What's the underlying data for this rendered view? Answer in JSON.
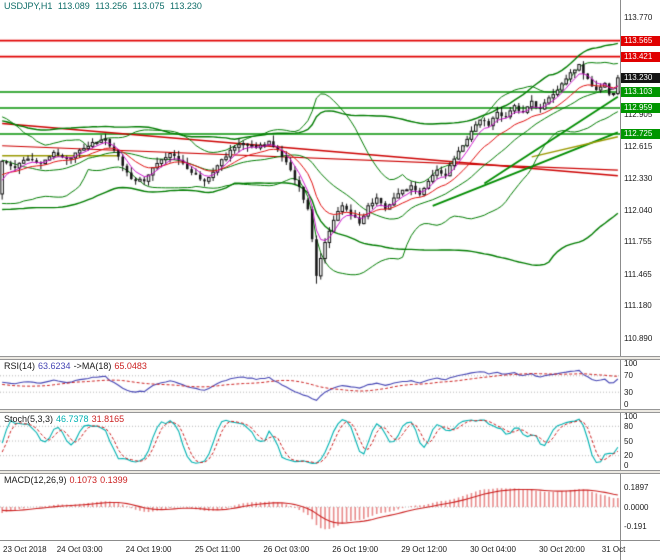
{
  "header": {
    "symbol": "USDJPY,H1",
    "open": "113.089",
    "high": "113.256",
    "low": "113.075",
    "close": "113.230"
  },
  "panels": {
    "rsi": {
      "title": "RSI(14)",
      "value": "63.6234",
      "ma_title": "->MA(18)",
      "ma_value": "65.0483",
      "levels": [
        "100",
        "70",
        "30",
        "0"
      ]
    },
    "stoch": {
      "title": "Stoch(5,3,3)",
      "value": "46.7378",
      "value2": "31.8165",
      "levels": [
        "100",
        "80",
        "50",
        "20",
        "0"
      ]
    },
    "macd": {
      "title": "MACD(12,26,9)",
      "value": "0.1073",
      "value2": "0.1399",
      "levels": [
        "0.1897",
        "0.0000",
        "-0.191"
      ]
    }
  },
  "chart_data": {
    "type": "candlestick",
    "symbol": "USDJPY",
    "timeframe": "H1",
    "bars": 144,
    "ylim": [
      110.73,
      113.93
    ],
    "y_ticks": [
      "113.770",
      "112.905",
      "112.615",
      "112.330",
      "112.040",
      "111.755",
      "111.465",
      "111.180",
      "110.890"
    ],
    "x_labels": [
      "23 Oct 2018",
      "24 Oct 03:00",
      "24 Oct 19:00",
      "25 Oct 11:00",
      "26 Oct 03:00",
      "26 Oct 19:00",
      "29 Oct 12:00",
      "30 Oct 04:00",
      "30 Oct 20:00",
      "31 Oct"
    ],
    "x_label_bars": [
      2,
      18,
      34,
      50,
      66,
      82,
      98,
      114,
      130,
      142
    ],
    "current_bar": {
      "open": 113.089,
      "high": 113.256,
      "low": 113.075,
      "close": 113.23
    },
    "close_anchors": [
      [
        0,
        112.48
      ],
      [
        3,
        112.42
      ],
      [
        6,
        112.5
      ],
      [
        9,
        112.46
      ],
      [
        12,
        112.56
      ],
      [
        15,
        112.5
      ],
      [
        18,
        112.58
      ],
      [
        21,
        112.65
      ],
      [
        24,
        112.68
      ],
      [
        26,
        112.58
      ],
      [
        28,
        112.44
      ],
      [
        30,
        112.32
      ],
      [
        33,
        112.3
      ],
      [
        36,
        112.46
      ],
      [
        39,
        112.55
      ],
      [
        42,
        112.46
      ],
      [
        45,
        112.36
      ],
      [
        47,
        112.3
      ],
      [
        50,
        112.44
      ],
      [
        53,
        112.58
      ],
      [
        56,
        112.64
      ],
      [
        59,
        112.6
      ],
      [
        62,
        112.66
      ],
      [
        64,
        112.58
      ],
      [
        65,
        112.52
      ],
      [
        67,
        112.4
      ],
      [
        69,
        112.25
      ],
      [
        71,
        112.05
      ],
      [
        72,
        111.78
      ],
      [
        73,
        111.45
      ],
      [
        75,
        111.75
      ],
      [
        77,
        111.95
      ],
      [
        79,
        112.08
      ],
      [
        81,
        112.0
      ],
      [
        83,
        111.92
      ],
      [
        85,
        112.08
      ],
      [
        87,
        112.15
      ],
      [
        89,
        112.05
      ],
      [
        91,
        112.15
      ],
      [
        93,
        112.22
      ],
      [
        95,
        112.26
      ],
      [
        97,
        112.18
      ],
      [
        99,
        112.3
      ],
      [
        101,
        112.4
      ],
      [
        103,
        112.35
      ],
      [
        105,
        112.5
      ],
      [
        107,
        112.62
      ],
      [
        109,
        112.75
      ],
      [
        111,
        112.85
      ],
      [
        113,
        112.8
      ],
      [
        115,
        112.92
      ],
      [
        117,
        112.88
      ],
      [
        119,
        112.98
      ],
      [
        121,
        112.92
      ],
      [
        123,
        113.02
      ],
      [
        125,
        112.95
      ],
      [
        127,
        113.05
      ],
      [
        129,
        113.12
      ],
      [
        131,
        113.22
      ],
      [
        133,
        113.3
      ],
      [
        134,
        113.35
      ],
      [
        136,
        113.22
      ],
      [
        138,
        113.12
      ],
      [
        140,
        113.18
      ],
      [
        141,
        113.08
      ],
      [
        142,
        113.09
      ],
      [
        143,
        113.23
      ]
    ],
    "spike_low": {
      "bar": 73,
      "price": 111.38
    },
    "noise": 0.035,
    "wick": 0.055,
    "hlines": [
      {
        "price": 113.565,
        "type": "resistance"
      },
      {
        "price": 113.421,
        "type": "resistance"
      },
      {
        "price": 113.103,
        "type": "support"
      },
      {
        "price": 112.959,
        "type": "support"
      },
      {
        "price": 112.725,
        "type": "support"
      }
    ],
    "badges": [
      {
        "label": "113.565",
        "type": "resistance"
      },
      {
        "label": "113.421",
        "type": "resistance"
      },
      {
        "label": "113.230",
        "type": "current"
      },
      {
        "label": "113.103",
        "type": "support"
      },
      {
        "label": "112.959",
        "type": "support"
      },
      {
        "label": "112.725",
        "type": "support"
      }
    ],
    "trendlines": [
      {
        "color": "trend_red",
        "from": [
          0,
          112.82
        ],
        "to": [
          143,
          112.35
        ],
        "width": 1.6
      },
      {
        "color": "trend_red",
        "from": [
          0,
          112.62
        ],
        "to": [
          143,
          112.4
        ],
        "width": 1.2
      },
      {
        "color": "trend_green",
        "from": [
          100,
          112.08
        ],
        "to": [
          143,
          112.74
        ],
        "width": 1.8
      },
      {
        "color": "trend_green",
        "from": [
          112,
          112.28
        ],
        "to": [
          143,
          113.06
        ],
        "width": 1.8
      },
      {
        "color": "trend_olive",
        "from": [
          0,
          112.53
        ],
        "to": [
          27,
          112.53
        ],
        "width": 1.5
      },
      {
        "color": "trend_olive",
        "from": [
          123,
          112.52
        ],
        "to": [
          143,
          112.7
        ],
        "width": 1.5
      }
    ],
    "indicators": {
      "bb_fast": 21,
      "bb_slow": 55,
      "bb_dev": 2,
      "ma_fast": 5,
      "ma_slow": 13,
      "rsi_period": 14,
      "rsi_ma_period": 18,
      "stoch": [
        5,
        3,
        3
      ],
      "macd": [
        12,
        26,
        9
      ]
    },
    "osc_ranges": {
      "rsi": [
        0,
        100
      ],
      "stoch": [
        0,
        100
      ],
      "macd": [
        -0.26,
        0.26
      ]
    }
  },
  "colors": {
    "header_text": "#0e6d68",
    "axis_text": "#1b1b1b",
    "bull": "#ffffff",
    "bear": "#141414",
    "bb": "#007c00",
    "ma_fast": "#c800c8",
    "ma_slow": "#e01010",
    "resistance_line": "#e00000",
    "support_line": "#009000",
    "resistance_badge": "#e00000",
    "support_badge": "#009600",
    "current_badge": "#141414",
    "trend_red": "#cc0000",
    "trend_green": "#008c00",
    "trend_olive": "#999900",
    "rsi_line": "#4646b4",
    "rsi_ma": "#cc2222",
    "stoch_k": "#00b2b2",
    "stoch_d": "#cc2222",
    "macd_hist": "#e88c8c",
    "macd_signal": "#cc2222",
    "level_dots": "#b4b4b4"
  }
}
